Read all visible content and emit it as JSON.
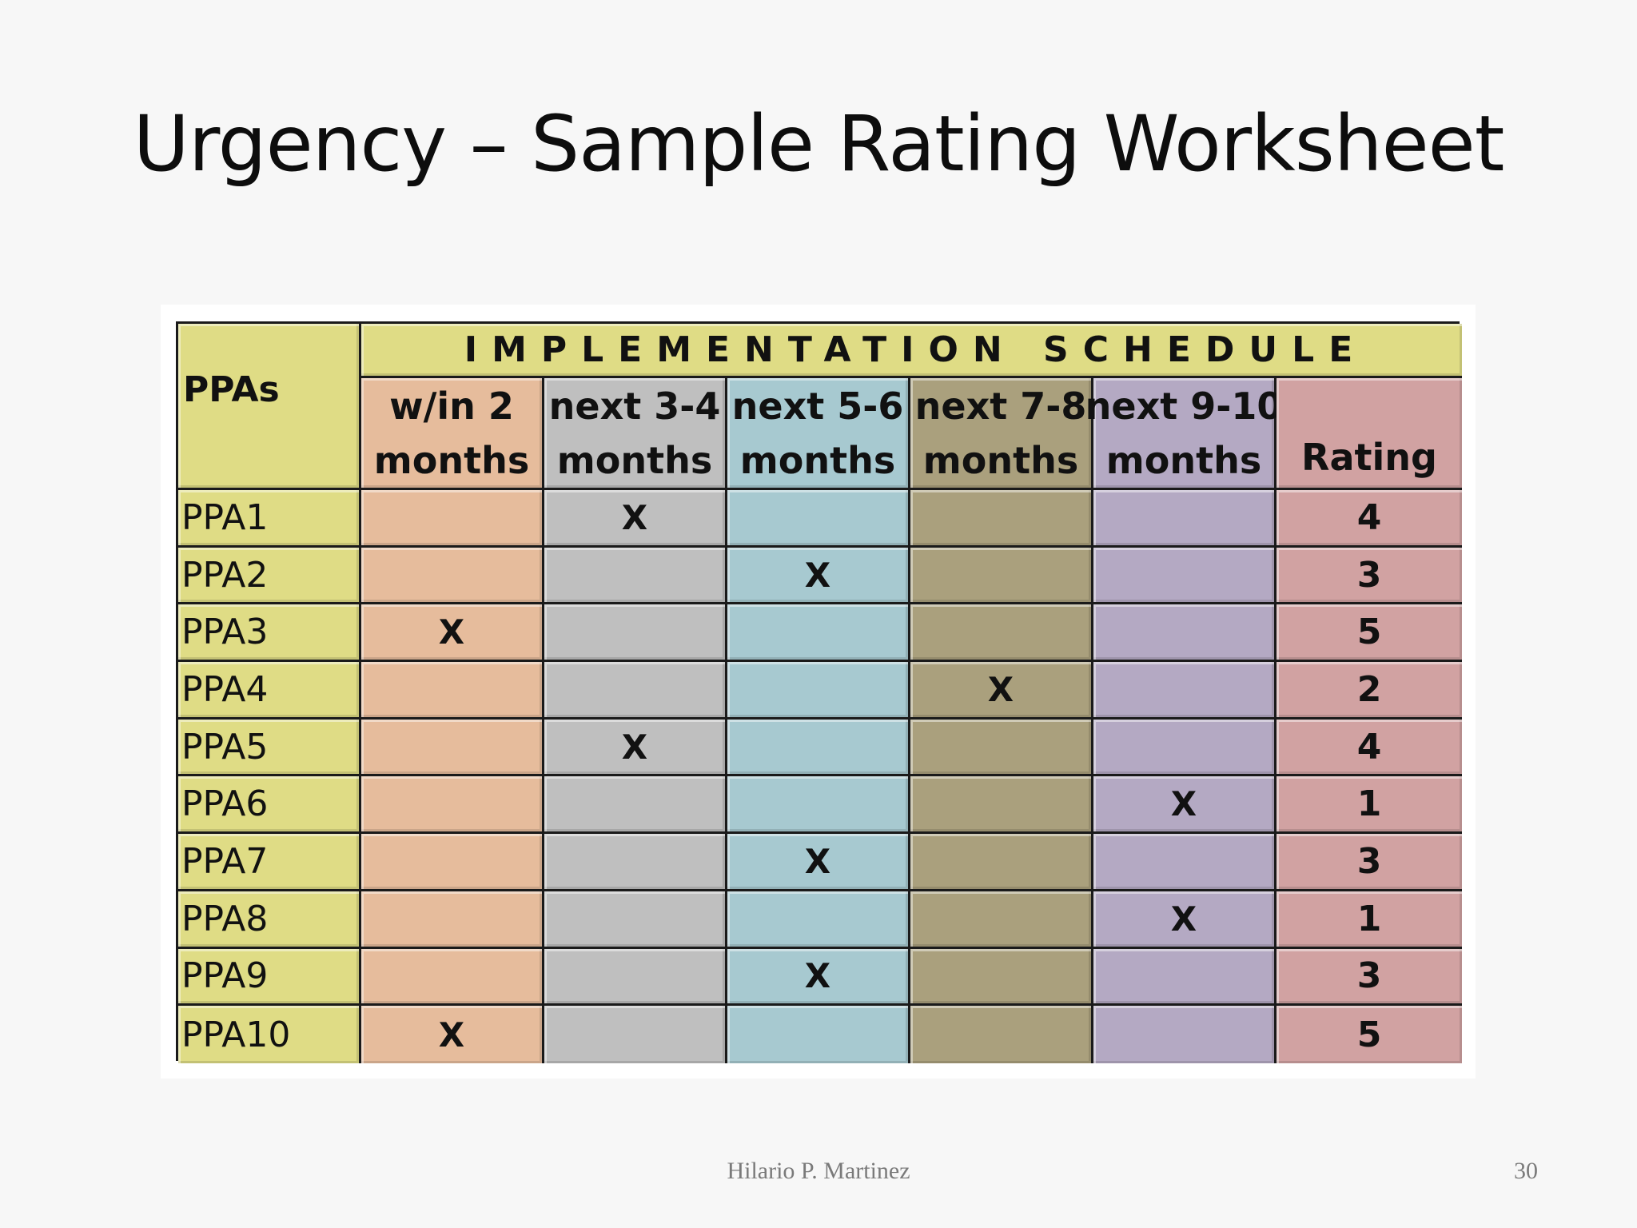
{
  "slide": {
    "title": "Urgency – Sample Rating Worksheet",
    "author": "Hilario P. Martinez",
    "page_number": "30"
  },
  "table": {
    "ppa_header": "PPAs",
    "group_header": "IMPLEMENTATION SCHEDULE",
    "columns": [
      {
        "line1": "w/in 2",
        "line2": "months",
        "color": "#e6bc9c"
      },
      {
        "line1": "next 3-4",
        "line2": "months",
        "color": "#bfbfbf"
      },
      {
        "line1": "next 5-6",
        "line2": "months",
        "color": "#a7c9d0"
      },
      {
        "line1": "next 7-8",
        "line2": "months",
        "color": "#aaa07d"
      },
      {
        "line1": "next 9-10",
        "line2": "months",
        "color": "#b4a9c3"
      }
    ],
    "rating_header": "Rating",
    "mark_symbol": "X",
    "rows": [
      {
        "label": "PPA1",
        "marks": [
          "",
          "X",
          "",
          "",
          ""
        ],
        "rating": "4"
      },
      {
        "label": "PPA2",
        "marks": [
          "",
          "",
          "X",
          "",
          ""
        ],
        "rating": "3"
      },
      {
        "label": "PPA3",
        "marks": [
          "X",
          "",
          "",
          "",
          ""
        ],
        "rating": "5"
      },
      {
        "label": "PPA4",
        "marks": [
          "",
          "",
          "",
          "X",
          ""
        ],
        "rating": "2"
      },
      {
        "label": "PPA5",
        "marks": [
          "",
          "X",
          "",
          "",
          ""
        ],
        "rating": "4"
      },
      {
        "label": "PPA6",
        "marks": [
          "",
          "",
          "",
          "",
          "X"
        ],
        "rating": "1"
      },
      {
        "label": "PPA7",
        "marks": [
          "",
          "",
          "X",
          "",
          ""
        ],
        "rating": "3"
      },
      {
        "label": "PPA8",
        "marks": [
          "",
          "",
          "",
          "",
          "X"
        ],
        "rating": "1"
      },
      {
        "label": "PPA9",
        "marks": [
          "",
          "",
          "X",
          "",
          ""
        ],
        "rating": "3"
      },
      {
        "label": "PPA10",
        "marks": [
          "X",
          "",
          "",
          "",
          ""
        ],
        "rating": "5"
      }
    ],
    "colors": {
      "ppa_column": "#dfdc85",
      "rating_column": "#d1a2a2",
      "border": "#1a1a1a"
    }
  }
}
